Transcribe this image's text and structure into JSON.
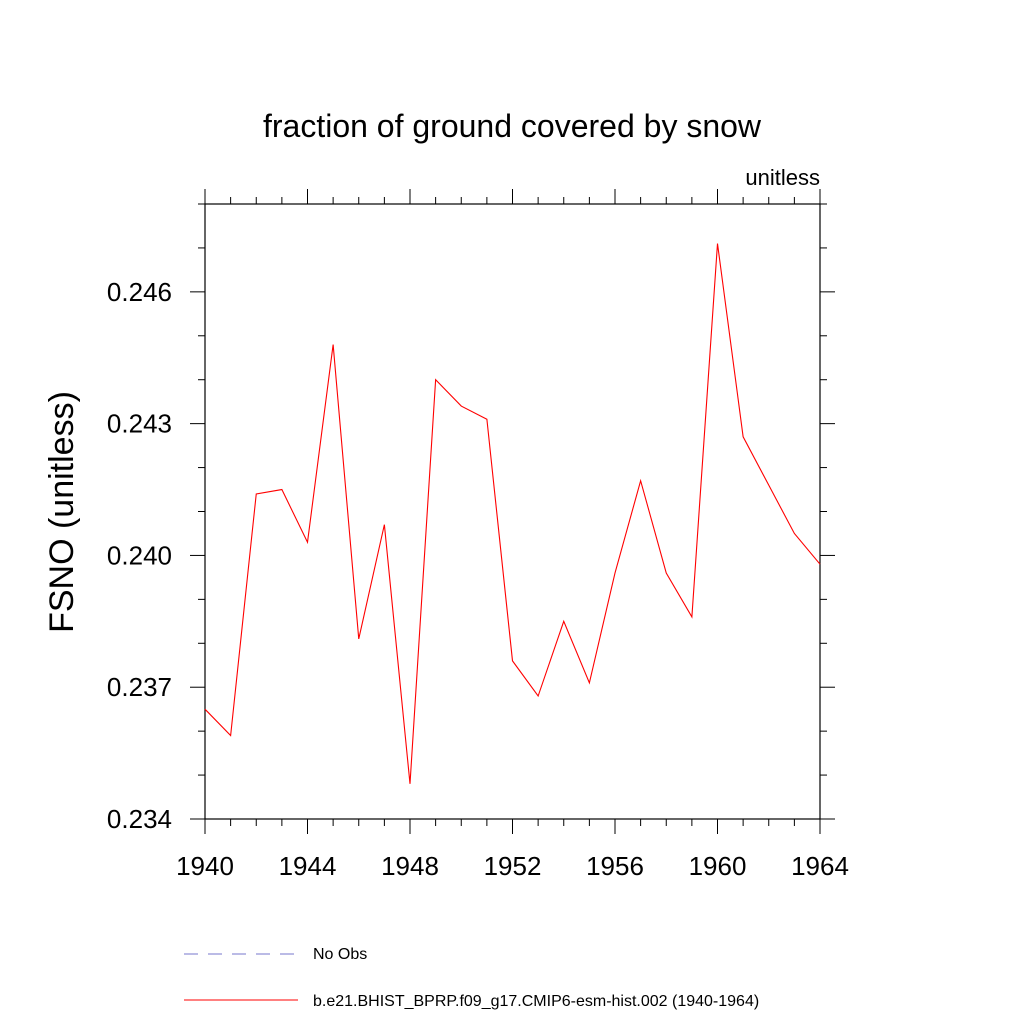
{
  "chart_data": {
    "type": "line",
    "title": "fraction of ground covered by snow",
    "units_label": "unitless",
    "ylabel": "FSNO  (unitless)",
    "xlabel": "",
    "xlim": [
      1940,
      1964
    ],
    "ylim": [
      0.234,
      0.248
    ],
    "x_ticks": [
      1940,
      1944,
      1948,
      1952,
      1956,
      1960,
      1964
    ],
    "x_tick_labels": [
      "1940",
      "1944",
      "1948",
      "1952",
      "1956",
      "1960",
      "1964"
    ],
    "y_ticks": [
      0.234,
      0.237,
      0.24,
      0.243,
      0.246
    ],
    "y_tick_labels": [
      "0.234",
      "0.237",
      "0.240",
      "0.243",
      "0.246"
    ],
    "x_minor_step": 1,
    "y_minor_step": 0.001,
    "grid": false,
    "legend_position": "bottom",
    "series": [
      {
        "name": "b.e21.BHIST_BPRP.f09_g17.CMIP6-esm-hist.002 (1940-1964)",
        "color": "#ff0000",
        "dash": "solid",
        "x": [
          1940,
          1941,
          1942,
          1943,
          1944,
          1945,
          1946,
          1947,
          1948,
          1949,
          1950,
          1951,
          1952,
          1953,
          1954,
          1955,
          1956,
          1957,
          1958,
          1959,
          1960,
          1961,
          1962,
          1963,
          1964
        ],
        "values": [
          0.2365,
          0.2359,
          0.2414,
          0.2415,
          0.2403,
          0.2448,
          0.2381,
          0.2407,
          0.2348,
          0.244,
          0.2434,
          0.2431,
          0.2376,
          0.2368,
          0.2385,
          0.2371,
          0.2396,
          0.2417,
          0.2396,
          0.2386,
          0.2471,
          0.2427,
          0.2416,
          0.2405,
          0.2398
        ]
      }
    ],
    "legend": [
      {
        "label": "No Obs",
        "color": "#7777cc",
        "dash": "dashed"
      },
      {
        "label": "b.e21.BHIST_BPRP.f09_g17.CMIP6-esm-hist.002 (1940-1964)",
        "color": "#ff0000",
        "dash": "solid"
      }
    ]
  }
}
